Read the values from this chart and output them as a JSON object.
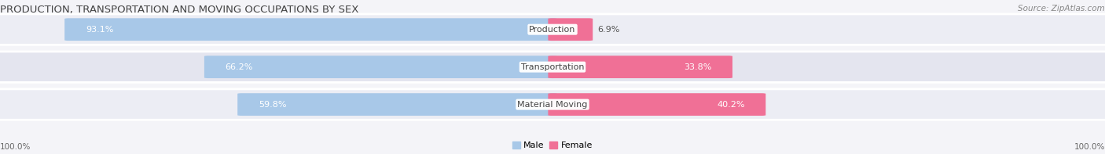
{
  "title": "PRODUCTION, TRANSPORTATION AND MOVING OCCUPATIONS BY SEX",
  "source": "Source: ZipAtlas.com",
  "categories": [
    "Production",
    "Transportation",
    "Material Moving"
  ],
  "male_pct": [
    93.1,
    66.2,
    59.8
  ],
  "female_pct": [
    6.9,
    33.8,
    40.2
  ],
  "male_color": "#a8c8e8",
  "female_color": "#f07096",
  "row_bg_even": "#ecedf4",
  "row_bg_odd": "#e4e5ef",
  "title_fontsize": 9.5,
  "label_fontsize": 8.0,
  "pct_fontsize": 8.0,
  "tick_fontsize": 7.5,
  "source_fontsize": 7.5,
  "background_color": "#f4f4f8"
}
